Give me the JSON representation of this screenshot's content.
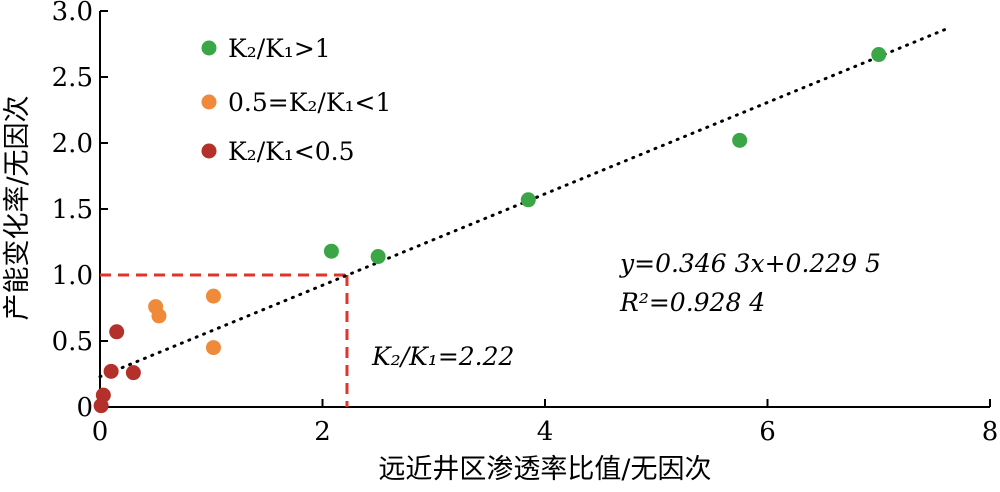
{
  "chart_data": {
    "type": "scatter",
    "xlabel": "远近井区渗透率比值/无因次",
    "ylabel": "产能变化率/无因次",
    "xlim": [
      0,
      8
    ],
    "ylim": [
      0,
      3.0
    ],
    "x_ticks": [
      "0",
      "2",
      "4",
      "6",
      "8"
    ],
    "y_ticks": [
      "0",
      "0.5",
      "1.0",
      "1.5",
      "2.0",
      "2.5",
      "3.0"
    ],
    "grid": false,
    "legend_position": "top-left",
    "series": [
      {
        "name": "K2/K1>1",
        "color": "#3aa645",
        "points": [
          [
            2.08,
            1.18
          ],
          [
            2.5,
            1.14
          ],
          [
            3.85,
            1.57
          ],
          [
            5.75,
            2.02
          ],
          [
            7.0,
            2.67
          ]
        ]
      },
      {
        "name": "0.5=K2/K1<1",
        "color": "#ef8a3a",
        "points": [
          [
            0.5,
            0.76
          ],
          [
            0.53,
            0.69
          ],
          [
            1.02,
            0.84
          ],
          [
            1.02,
            0.45
          ]
        ]
      },
      {
        "name": "K2/K1<0.5",
        "color": "#b3302b",
        "points": [
          [
            0.01,
            0.01
          ],
          [
            0.03,
            0.09
          ],
          [
            0.1,
            0.27
          ],
          [
            0.15,
            0.57
          ],
          [
            0.3,
            0.26
          ]
        ]
      }
    ],
    "fit_line": {
      "slope": 0.3463,
      "intercept": 0.2295,
      "x_range": [
        0,
        7.6
      ],
      "style": "dotted",
      "color": "#000000"
    },
    "reference": {
      "x": 2.22,
      "y": 1.0,
      "color": "#e0352b",
      "style": "dashed"
    },
    "annotations": {
      "equation": "y=0.346 3x+0.229 5",
      "r_squared": "R²=0.928 4",
      "ratio": "K₂/K₁=2.22"
    },
    "legend_labels": [
      "K₂/K₁>1",
      "0.5=K₂/K₁<1",
      "K₂/K₁<0.5"
    ]
  }
}
